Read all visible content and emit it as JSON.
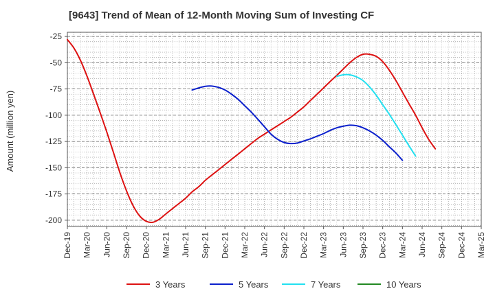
{
  "chart_data": {
    "type": "line",
    "title": "[9643]  Trend of Mean of 12-Month Moving Sum of Investing CF",
    "xlabel": "",
    "ylabel": "Amount (million yen)",
    "ylim": [
      -206,
      -21
    ],
    "yticks": [
      -25,
      -50,
      -75,
      -100,
      -125,
      -150,
      -175,
      -200
    ],
    "x_categories": [
      "Dec-19",
      "Mar-20",
      "Jun-20",
      "Sep-20",
      "Dec-20",
      "Mar-21",
      "Jun-21",
      "Sep-21",
      "Dec-21",
      "Mar-22",
      "Jun-22",
      "Sep-22",
      "Dec-22",
      "Mar-23",
      "Jun-23",
      "Sep-23",
      "Dec-23",
      "Mar-24",
      "Jun-24",
      "Sep-24",
      "Dec-24",
      "Mar-25"
    ],
    "grid": true,
    "legend_position": "bottom",
    "series": [
      {
        "name": "3 Years",
        "color": "#dd1111",
        "points": [
          [
            0,
            -28
          ],
          [
            0.33,
            -36
          ],
          [
            0.67,
            -48
          ],
          [
            1,
            -63
          ],
          [
            1.33,
            -80
          ],
          [
            1.67,
            -98
          ],
          [
            2,
            -116
          ],
          [
            2.33,
            -135
          ],
          [
            2.67,
            -155
          ],
          [
            3,
            -172
          ],
          [
            3.33,
            -186
          ],
          [
            3.67,
            -196
          ],
          [
            4,
            -201
          ],
          [
            4.33,
            -202
          ],
          [
            4.67,
            -199
          ],
          [
            5,
            -194
          ],
          [
            5.33,
            -189
          ],
          [
            5.67,
            -184
          ],
          [
            6,
            -179
          ],
          [
            6.33,
            -173
          ],
          [
            6.67,
            -168
          ],
          [
            7,
            -162
          ],
          [
            7.33,
            -157
          ],
          [
            7.67,
            -152
          ],
          [
            8,
            -147
          ],
          [
            8.33,
            -142
          ],
          [
            8.67,
            -137
          ],
          [
            9,
            -132
          ],
          [
            9.33,
            -127
          ],
          [
            9.67,
            -122
          ],
          [
            10,
            -118
          ],
          [
            10.33,
            -114
          ],
          [
            10.67,
            -110
          ],
          [
            11,
            -106
          ],
          [
            11.33,
            -102
          ],
          [
            11.67,
            -97
          ],
          [
            12,
            -92
          ],
          [
            12.33,
            -86
          ],
          [
            12.67,
            -80
          ],
          [
            13,
            -74
          ],
          [
            13.33,
            -68
          ],
          [
            13.67,
            -62
          ],
          [
            14,
            -56
          ],
          [
            14.33,
            -50
          ],
          [
            14.67,
            -45
          ],
          [
            15,
            -42
          ],
          [
            15.33,
            -42
          ],
          [
            15.67,
            -44
          ],
          [
            16,
            -49
          ],
          [
            16.33,
            -57
          ],
          [
            16.67,
            -67
          ],
          [
            17,
            -78
          ],
          [
            17.33,
            -89
          ],
          [
            17.67,
            -100
          ],
          [
            18,
            -112
          ],
          [
            18.33,
            -123
          ],
          [
            18.67,
            -132
          ]
        ]
      },
      {
        "name": "5 Years",
        "color": "#0a1fcc",
        "points": [
          [
            6.33,
            -76
          ],
          [
            6.67,
            -74
          ],
          [
            7,
            -72.5
          ],
          [
            7.33,
            -72.2
          ],
          [
            7.67,
            -73.5
          ],
          [
            8,
            -76
          ],
          [
            8.33,
            -80
          ],
          [
            8.67,
            -85
          ],
          [
            9,
            -91
          ],
          [
            9.33,
            -97
          ],
          [
            9.67,
            -104
          ],
          [
            10,
            -111
          ],
          [
            10.33,
            -118
          ],
          [
            10.67,
            -123
          ],
          [
            11,
            -126
          ],
          [
            11.33,
            -127
          ],
          [
            11.67,
            -126.5
          ],
          [
            12,
            -124.5
          ],
          [
            12.33,
            -122.5
          ],
          [
            12.67,
            -120
          ],
          [
            13,
            -117.5
          ],
          [
            13.33,
            -114.5
          ],
          [
            13.67,
            -112
          ],
          [
            14,
            -110.5
          ],
          [
            14.33,
            -109.5
          ],
          [
            14.67,
            -110
          ],
          [
            15,
            -112
          ],
          [
            15.33,
            -115
          ],
          [
            15.67,
            -119
          ],
          [
            16,
            -124
          ],
          [
            16.33,
            -130
          ],
          [
            16.67,
            -136
          ],
          [
            17,
            -143
          ]
        ]
      },
      {
        "name": "7 Years",
        "color": "#22e0f0",
        "points": [
          [
            13.67,
            -63
          ],
          [
            14,
            -61.5
          ],
          [
            14.33,
            -61.5
          ],
          [
            14.67,
            -63.5
          ],
          [
            15,
            -67
          ],
          [
            15.33,
            -73
          ],
          [
            15.67,
            -81
          ],
          [
            16,
            -90
          ],
          [
            16.33,
            -99
          ],
          [
            16.67,
            -109
          ],
          [
            17,
            -119
          ],
          [
            17.33,
            -129
          ],
          [
            17.67,
            -139
          ]
        ]
      },
      {
        "name": "10 Years",
        "color": "#228822",
        "points": []
      }
    ]
  }
}
